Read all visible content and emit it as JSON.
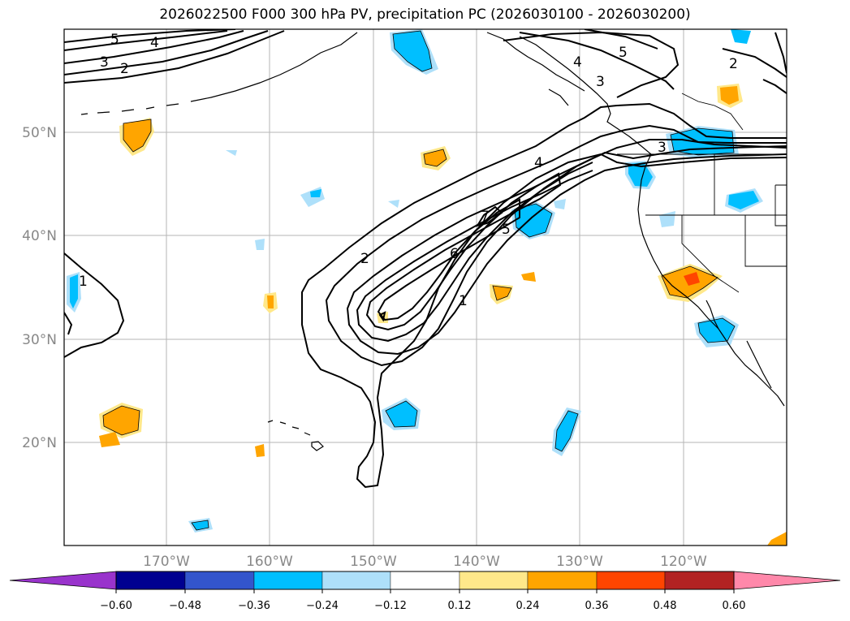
{
  "title": "2026022500 F000 300 hPa PV, precipitation PC (2026030100 - 2026030200)",
  "map": {
    "lat_labels": [
      "50°N",
      "40°N",
      "30°N",
      "20°N"
    ],
    "lon_labels": [
      "170°W",
      "160°W",
      "150°W",
      "140°W",
      "130°W",
      "120°W"
    ]
  },
  "pv_contour_labels": [
    "5",
    "4",
    "3",
    "2",
    "1",
    "2",
    "4",
    "6",
    "7",
    "5",
    "1",
    "4",
    "3",
    "5",
    "2",
    "3"
  ],
  "colorbar": {
    "tick_labels": [
      "−0.60",
      "−0.48",
      "−0.36",
      "−0.24",
      "−0.12",
      "0.12",
      "0.24",
      "0.36",
      "0.48",
      "0.60"
    ],
    "colors": [
      "#9933cc",
      "#000090",
      "#3355cc",
      "#00bfff",
      "#aee0fa",
      "#ffffff",
      "#ffe88a",
      "#ffa500",
      "#ff4500",
      "#b22222",
      "#ff88aa"
    ]
  }
}
